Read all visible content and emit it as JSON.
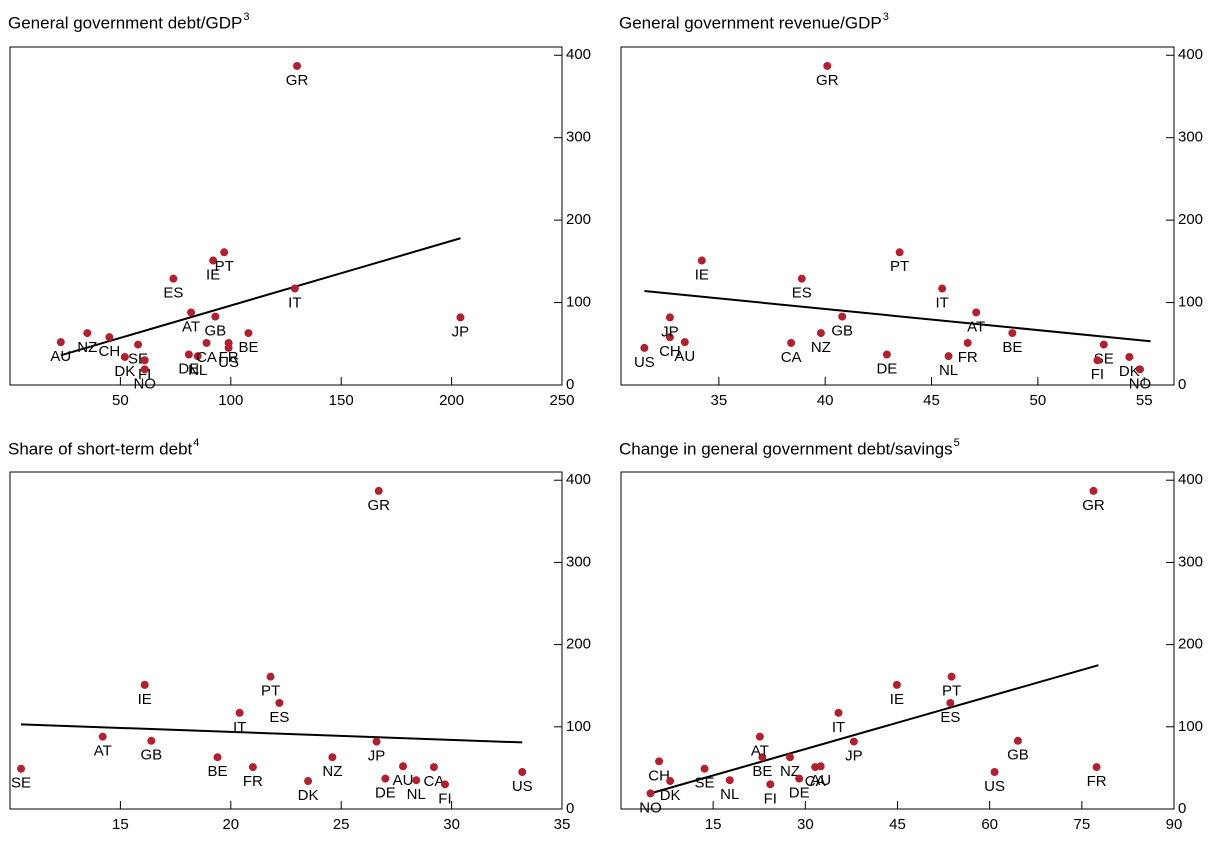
{
  "chart_data": [
    {
      "type": "scatter",
      "title": "General government debt/GDP",
      "title_note": "3",
      "color": "#b0202e",
      "xlim": [
        0,
        250
      ],
      "xticks": [
        50,
        100,
        150,
        200,
        250
      ],
      "ylim": [
        0,
        410
      ],
      "yticks": [
        0,
        100,
        200,
        300,
        400
      ],
      "labels": [
        "AU",
        "NZ",
        "CH",
        "DK",
        "SE",
        "FI",
        "NO",
        "DE",
        "NL",
        "CA",
        "AT",
        "GB",
        "IE",
        "PT",
        "ES",
        "FR",
        "US",
        "BE",
        "IT",
        "GR",
        "JP"
      ],
      "x": [
        23,
        35,
        45,
        52,
        58,
        61,
        61,
        81,
        85,
        89,
        82,
        93,
        92,
        97,
        74,
        99,
        99,
        108,
        129,
        130,
        204
      ],
      "y": [
        52,
        63,
        58,
        34,
        49,
        30,
        19,
        37,
        35,
        51,
        88,
        83,
        151,
        161,
        129,
        51,
        45,
        63,
        117,
        387,
        82
      ],
      "trend": {
        "x": [
          23,
          204
        ],
        "y": [
          36,
          178
        ]
      }
    },
    {
      "type": "scatter",
      "title": "General government revenue/GDP",
      "title_note": "3",
      "color": "#b0202e",
      "xlim": [
        30.4,
        56.4
      ],
      "xticks": [
        35,
        40,
        45,
        50,
        55
      ],
      "ylim": [
        0,
        410
      ],
      "yticks": [
        0,
        100,
        200,
        300,
        400
      ],
      "labels": [
        "AU",
        "NZ",
        "CH",
        "DK",
        "SE",
        "FI",
        "NO",
        "DE",
        "NL",
        "CA",
        "AT",
        "GB",
        "IE",
        "PT",
        "ES",
        "FR",
        "US",
        "BE",
        "IT",
        "GR",
        "JP"
      ],
      "x": [
        33.4,
        39.8,
        32.7,
        54.3,
        53.1,
        52.8,
        54.8,
        42.9,
        45.8,
        38.4,
        47.1,
        40.8,
        34.2,
        43.5,
        38.9,
        46.7,
        31.5,
        48.8,
        45.5,
        40.1,
        32.7
      ],
      "y": [
        52,
        63,
        58,
        34,
        49,
        30,
        19,
        37,
        35,
        51,
        88,
        83,
        151,
        161,
        129,
        51,
        45,
        63,
        117,
        387,
        82
      ],
      "trend": {
        "x": [
          31.5,
          55.3
        ],
        "y": [
          114,
          53
        ]
      }
    },
    {
      "type": "scatter",
      "title": "Share of short-term debt",
      "title_note": "4",
      "color": "#b0202e",
      "xlim": [
        10,
        35
      ],
      "xticks": [
        15,
        20,
        25,
        30,
        35
      ],
      "ylim": [
        0,
        410
      ],
      "yticks": [
        0,
        100,
        200,
        300,
        400
      ],
      "labels": [
        "SE",
        "AT",
        "GB",
        "IE",
        "BE",
        "IT",
        "FR",
        "PT",
        "ES",
        "DK",
        "NZ",
        "JP",
        "GR",
        "DE",
        "AU",
        "NL",
        "CA",
        "FI",
        "US"
      ],
      "x": [
        10.5,
        14.2,
        16.4,
        16.1,
        19.4,
        20.4,
        21.0,
        21.8,
        22.2,
        23.5,
        24.6,
        26.6,
        26.7,
        27.0,
        27.8,
        28.4,
        29.2,
        29.7,
        33.2
      ],
      "y": [
        49,
        88,
        83,
        151,
        63,
        117,
        51,
        161,
        129,
        34,
        63,
        82,
        387,
        37,
        52,
        35,
        51,
        30,
        45
      ],
      "trend": {
        "x": [
          10.5,
          33.2
        ],
        "y": [
          103,
          81
        ]
      }
    },
    {
      "type": "scatter",
      "title": "Change in general government debt/savings",
      "title_note": "5",
      "color": "#b0202e",
      "xlim": [
        0,
        90
      ],
      "xticks": [
        15,
        30,
        45,
        60,
        75,
        90
      ],
      "ylim": [
        0,
        410
      ],
      "yticks": [
        0,
        100,
        200,
        300,
        400
      ],
      "labels": [
        "NO",
        "CH",
        "DK",
        "SE",
        "NL",
        "BE",
        "FI",
        "AT",
        "NZ",
        "DE",
        "CA",
        "AU",
        "IT",
        "JP",
        "IE",
        "ES",
        "PT",
        "US",
        "GB",
        "FR",
        "GR"
      ],
      "x": [
        4.8,
        6.2,
        8.0,
        13.6,
        17.7,
        23.0,
        24.3,
        22.6,
        27.5,
        29.0,
        31.6,
        32.5,
        35.4,
        37.9,
        44.9,
        53.6,
        53.8,
        60.8,
        64.6,
        77.4,
        76.9
      ],
      "y": [
        19,
        58,
        34,
        49,
        35,
        63,
        30,
        88,
        63,
        37,
        51,
        52,
        117,
        82,
        151,
        129,
        161,
        45,
        83,
        51,
        387
      ],
      "trend": {
        "x": [
          4.8,
          77.7
        ],
        "y": [
          19,
          175
        ]
      }
    }
  ]
}
